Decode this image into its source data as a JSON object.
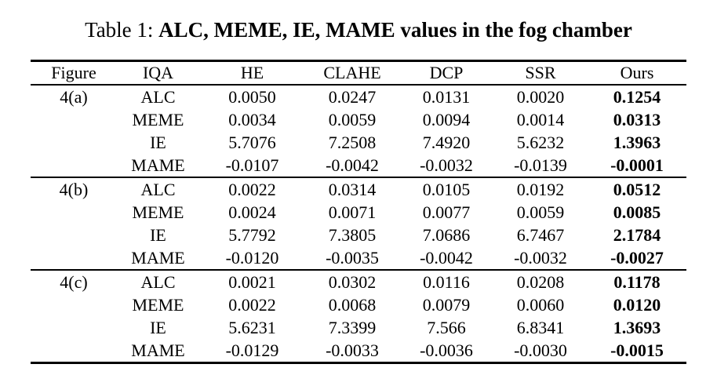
{
  "caption": {
    "prefix": "Table 1:",
    "title": "ALC, MEME, IE, MAME values in the fog chamber"
  },
  "colors": {
    "text": "#000000",
    "background": "#ffffff",
    "rule": "#000000"
  },
  "table": {
    "headers": [
      "Figure",
      "IQA",
      "HE",
      "CLAHE",
      "DCP",
      "SSR",
      "Ours"
    ],
    "groups": [
      {
        "figure": "4(a)",
        "rows": [
          {
            "iqa": "ALC",
            "values": [
              "0.0050",
              "0.0247",
              "0.0131",
              "0.0020",
              "0.1254"
            ]
          },
          {
            "iqa": "MEME",
            "values": [
              "0.0034",
              "0.0059",
              "0.0094",
              "0.0014",
              "0.0313"
            ]
          },
          {
            "iqa": "IE",
            "values": [
              "5.7076",
              "7.2508",
              "7.4920",
              "5.6232",
              "1.3963"
            ]
          },
          {
            "iqa": "MAME",
            "values": [
              "-0.0107",
              "-0.0042",
              "-0.0032",
              "-0.0139",
              "-0.0001"
            ]
          }
        ]
      },
      {
        "figure": "4(b)",
        "rows": [
          {
            "iqa": "ALC",
            "values": [
              "0.0022",
              "0.0314",
              "0.0105",
              "0.0192",
              "0.0512"
            ]
          },
          {
            "iqa": "MEME",
            "values": [
              "0.0024",
              "0.0071",
              "0.0077",
              "0.0059",
              "0.0085"
            ]
          },
          {
            "iqa": "IE",
            "values": [
              "5.7792",
              "7.3805",
              "7.0686",
              "6.7467",
              "2.1784"
            ]
          },
          {
            "iqa": "MAME",
            "values": [
              "-0.0120",
              "-0.0035",
              "-0.0042",
              "-0.0032",
              "-0.0027"
            ]
          }
        ]
      },
      {
        "figure": "4(c)",
        "rows": [
          {
            "iqa": "ALC",
            "values": [
              "0.0021",
              "0.0302",
              "0.0116",
              "0.0208",
              "0.1178"
            ]
          },
          {
            "iqa": "MEME",
            "values": [
              "0.0022",
              "0.0068",
              "0.0079",
              "0.0060",
              "0.0120"
            ]
          },
          {
            "iqa": "IE",
            "values": [
              "5.6231",
              "7.3399",
              "7.566",
              "6.8341",
              "1.3693"
            ]
          },
          {
            "iqa": "MAME",
            "values": [
              "-0.0129",
              "-0.0033",
              "-0.0036",
              "-0.0030",
              "-0.0015"
            ]
          }
        ]
      }
    ]
  }
}
